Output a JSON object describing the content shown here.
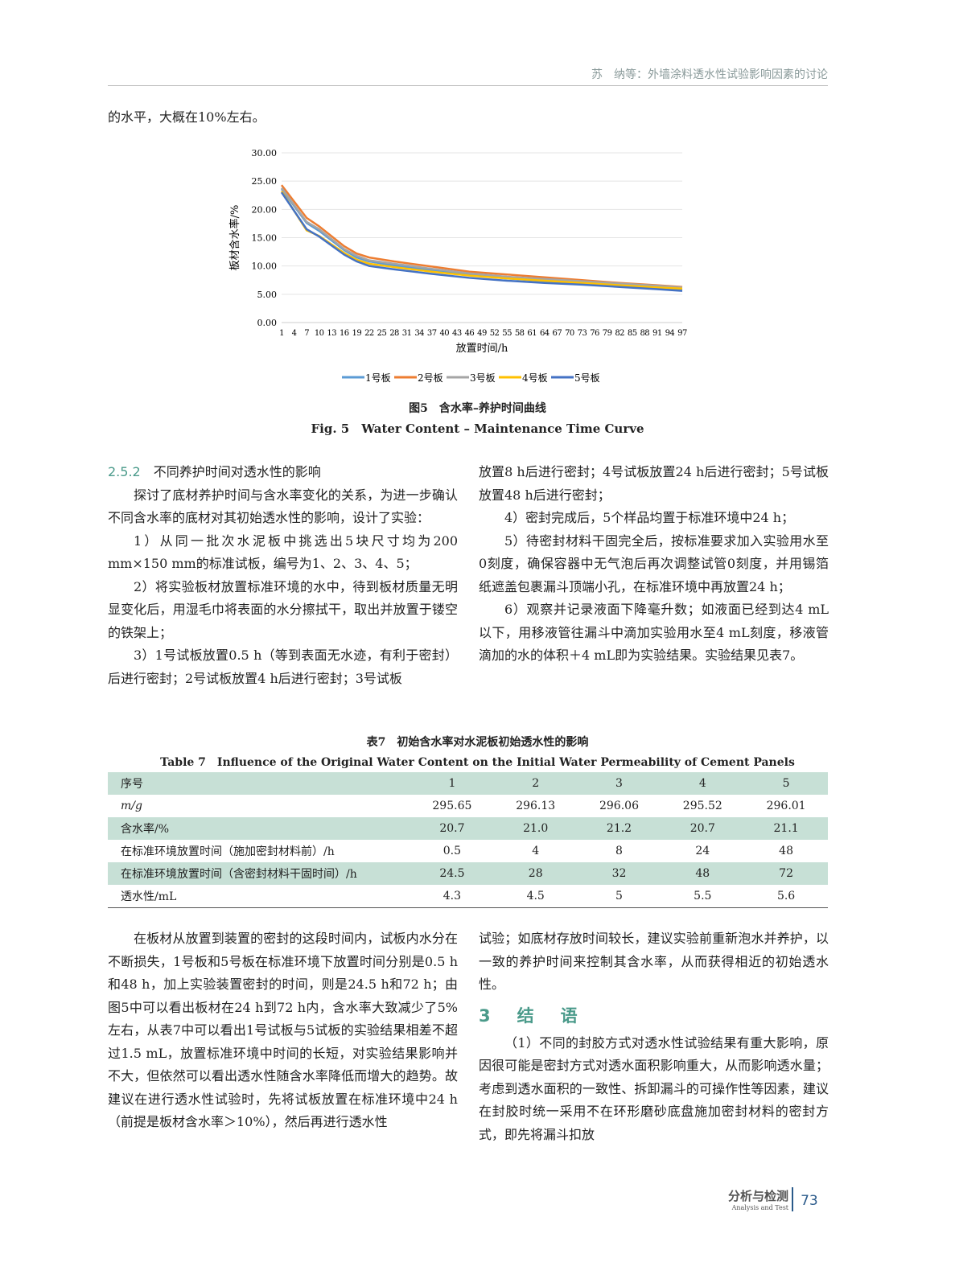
{
  "header": "苏　纳等：外墙涂料透水性试验影响因素的讨论",
  "intro": "的水平，大概在10%左右。",
  "chart_data": {
    "type": "line",
    "ylabel": "板材含水率/%",
    "xlabel": "放置时间/h",
    "ylim": [
      0,
      30
    ],
    "yticks": [
      "0.00",
      "5.00",
      "10.00",
      "15.00",
      "20.00",
      "25.00",
      "30.00"
    ],
    "xticks": [
      1,
      4,
      7,
      10,
      13,
      16,
      19,
      22,
      25,
      28,
      31,
      34,
      37,
      40,
      43,
      46,
      49,
      52,
      55,
      58,
      61,
      64,
      67,
      70,
      73,
      76,
      79,
      82,
      85,
      88,
      91,
      94,
      97
    ],
    "x": [
      1,
      7,
      10,
      16,
      19,
      22,
      28,
      37,
      46,
      55,
      64,
      73,
      82,
      91,
      97
    ],
    "grid": true,
    "legend": "bottom",
    "series": [
      {
        "name": "1号板",
        "color": "#5b9bd5",
        "values": [
          23.6,
          17.6,
          16.2,
          12.8,
          11.5,
          10.8,
          10.1,
          9.2,
          8.4,
          7.8,
          7.3,
          6.9,
          6.5,
          6.1,
          5.8
        ]
      },
      {
        "name": "2号板",
        "color": "#ed7d31",
        "values": [
          24.3,
          18.5,
          17.0,
          13.5,
          12.2,
          11.5,
          10.8,
          9.9,
          9.0,
          8.5,
          8.0,
          7.5,
          7.0,
          6.6,
          6.3
        ]
      },
      {
        "name": "3号板",
        "color": "#a5a5a5",
        "values": [
          23.8,
          17.8,
          16.5,
          13.0,
          11.8,
          11.0,
          10.4,
          9.5,
          8.7,
          8.1,
          7.7,
          7.3,
          6.9,
          6.5,
          6.2
        ]
      },
      {
        "name": "4号板",
        "color": "#ffc000",
        "values": [
          23.2,
          16.3,
          15.3,
          12.3,
          11.1,
          10.4,
          9.8,
          9.0,
          8.3,
          7.8,
          7.4,
          7.0,
          6.6,
          6.2,
          6.0
        ]
      },
      {
        "name": "5号板",
        "color": "#4472c4",
        "values": [
          23.0,
          16.5,
          15.2,
          12.0,
          10.8,
          10.0,
          9.4,
          8.6,
          7.9,
          7.4,
          7.0,
          6.7,
          6.3,
          5.9,
          5.6
        ]
      }
    ]
  },
  "fig_caption_cn": "图5　含水率–养护时间曲线",
  "fig_caption_en": "Fig. 5　Water Content – Maintenance Time Curve",
  "left_col": {
    "section": "2.5.2",
    "section_title": "不同养护时间对透水性的影响",
    "paras": [
      "探讨了底材养护时间与含水率变化的关系，为进一步确认不同含水率的底材对其初始透水性的影响，设计了实验：",
      "1）从同一批次水泥板中挑选出5块尺寸均为200 mm×150 mm的标准试板，编号为1、2、3、4、5；",
      "2）将实验板材放置标准环境的水中，待到板材质量无明显变化后，用湿毛巾将表面的水分擦拭干，取出并放置于镂空的铁架上；",
      "3）1号试板放置0.5 h（等到表面无水迹，有利于密封）后进行密封；2号试板放置4 h后进行密封；3号试板"
    ]
  },
  "right_col": {
    "paras": [
      "放置8 h后进行密封；4号试板放置24 h后进行密封；5号试板放置48 h后进行密封；",
      "4）密封完成后，5个样品均置于标准环境中24 h；",
      "5）待密封材料干固完全后，按标准要求加入实验用水至0刻度，确保容器中无气泡后再次调整试管0刻度，并用锡箔纸遮盖包裹漏斗顶端小孔，在标准环境中再放置24 h；",
      "6）观察并记录液面下降毫升数；如液面已经到达4 mL以下，用移液管往漏斗中滴加实验用水至4 mL刻度，移液管滴加的水的体积＋4 mL即为实验结果。实验结果见表7。"
    ]
  },
  "table": {
    "caption_cn": "表7　初始含水率对水泥板初始透水性的影响",
    "caption_en": "Table 7　Influence of the Original Water Content on the Initial Water Permeability of Cement Panels",
    "rows": [
      [
        "序号",
        "1",
        "2",
        "3",
        "4",
        "5"
      ],
      [
        "m/g",
        "295.65",
        "296.13",
        "296.06",
        "295.52",
        "296.01"
      ],
      [
        "含水率/%",
        "20.7",
        "21.0",
        "21.2",
        "20.7",
        "21.1"
      ],
      [
        "在标准环境放置时间（施加密封材料前）/h",
        "0.5",
        "4",
        "8",
        "24",
        "48"
      ],
      [
        "在标准环境放置时间（含密封材料干固时间）/h",
        "24.5",
        "28",
        "32",
        "48",
        "72"
      ],
      [
        "透水性/mL",
        "4.3",
        "4.5",
        "5",
        "5.5",
        "5.6"
      ]
    ]
  },
  "bottom_left": "在板材从放置到装置的密封的这段时间内，试板内水分在不断损失，1号板和5号板在标准环境下放置时间分别是0.5 h和48 h，加上实验装置密封的时间，则是24.5 h和72 h；由图5中可以看出板材在24 h到72 h内，含水率大致减少了5%左右，从表7中可以看出1号试板与5试板的实验结果相差不超过1.5 mL，放置标准环境中时间的长短，对实验结果影响并不大，但依然可以看出透水性随含水率降低而增大的趋势。故建议在进行透水性试验时，先将试板放置在标准环境中24 h（前提是板材含水率＞10%），然后再进行透水性",
  "bottom_right": {
    "p1": "试验；如底材存放时间较长，建议实验前重新泡水并养护，以一致的养护时间来控制其含水率，从而获得相近的初始透水性。",
    "heading": "3　结　语",
    "p2": "（1）不同的封胶方式对透水性试验结果有重大影响，原因很可能是密封方式对透水面积影响重大，从而影响透水量；考虑到透水面积的一致性、拆卸漏斗的可操作性等因素，建议在封胶时统一采用不在环形磨砂底盘施加密封材料的密封方式，即先将漏斗扣放"
  },
  "footer": {
    "journal_cn": "分析与检测",
    "journal_en": "Analysis and Test",
    "page": "73"
  }
}
